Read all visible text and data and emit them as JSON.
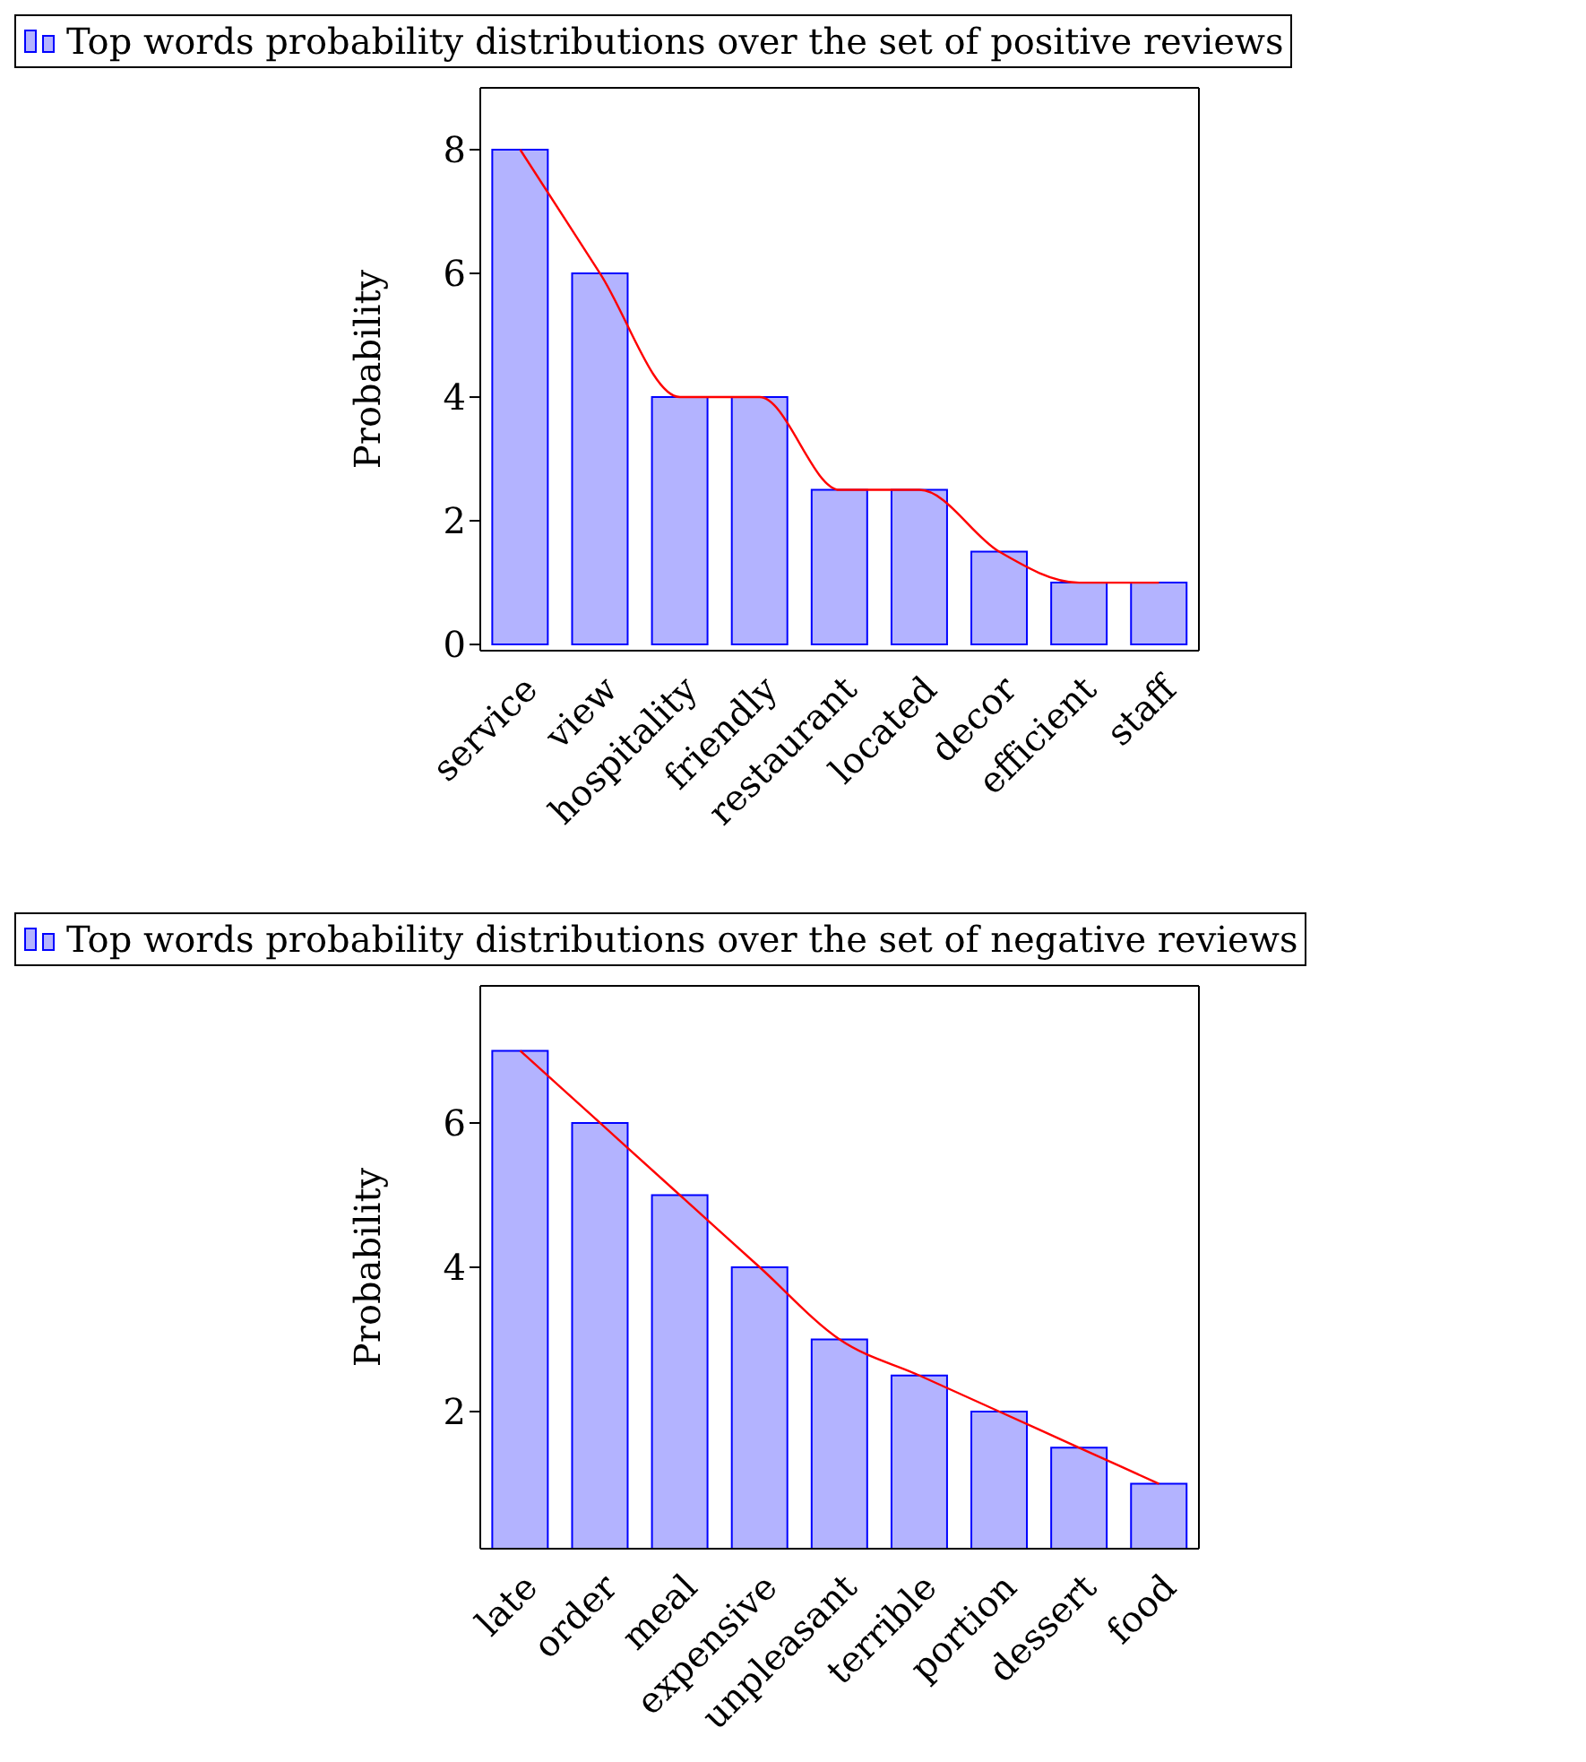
{
  "chart_data": [
    {
      "type": "bar",
      "ylabel": "Probability",
      "categories": [
        "service",
        "view",
        "hospitality",
        "friendly",
        "restaurant",
        "located",
        "decor",
        "efficient",
        "staff"
      ],
      "ylim": [
        -0.1,
        9
      ],
      "yticks": [
        0,
        2,
        4,
        6,
        8
      ],
      "legend": "top",
      "grid": false,
      "series": [
        {
          "name": "Top words probability distributions over the set of positive reviews",
          "color": "#b3b3ff",
          "values": [
            8,
            6,
            4,
            4,
            2.5,
            2.5,
            1.5,
            1,
            1
          ]
        },
        {
          "type": "line",
          "color": "#ff0000",
          "marker": "none",
          "values": [
            8,
            6,
            4,
            4,
            2.5,
            2.5,
            1.5,
            1,
            1
          ]
        }
      ]
    },
    {
      "type": "bar",
      "ylabel": "Probability",
      "categories": [
        "late",
        "order",
        "meal",
        "expensive",
        "unpleasant",
        "terrible",
        "portion",
        "dessert",
        "food"
      ],
      "ylim": [
        0.1,
        7.9
      ],
      "yticks": [
        2,
        4,
        6
      ],
      "legend": "top",
      "grid": false,
      "series": [
        {
          "name": "Top words probability distributions over the set of negative reviews",
          "color": "#b3b3ff",
          "values": [
            7,
            6,
            5,
            4,
            3,
            2.5,
            2,
            1.5,
            1
          ]
        },
        {
          "type": "line",
          "color": "#ff0000",
          "marker": "none",
          "values": [
            7,
            6,
            5,
            4,
            3,
            2.5,
            2,
            1.5,
            1
          ]
        }
      ]
    }
  ]
}
